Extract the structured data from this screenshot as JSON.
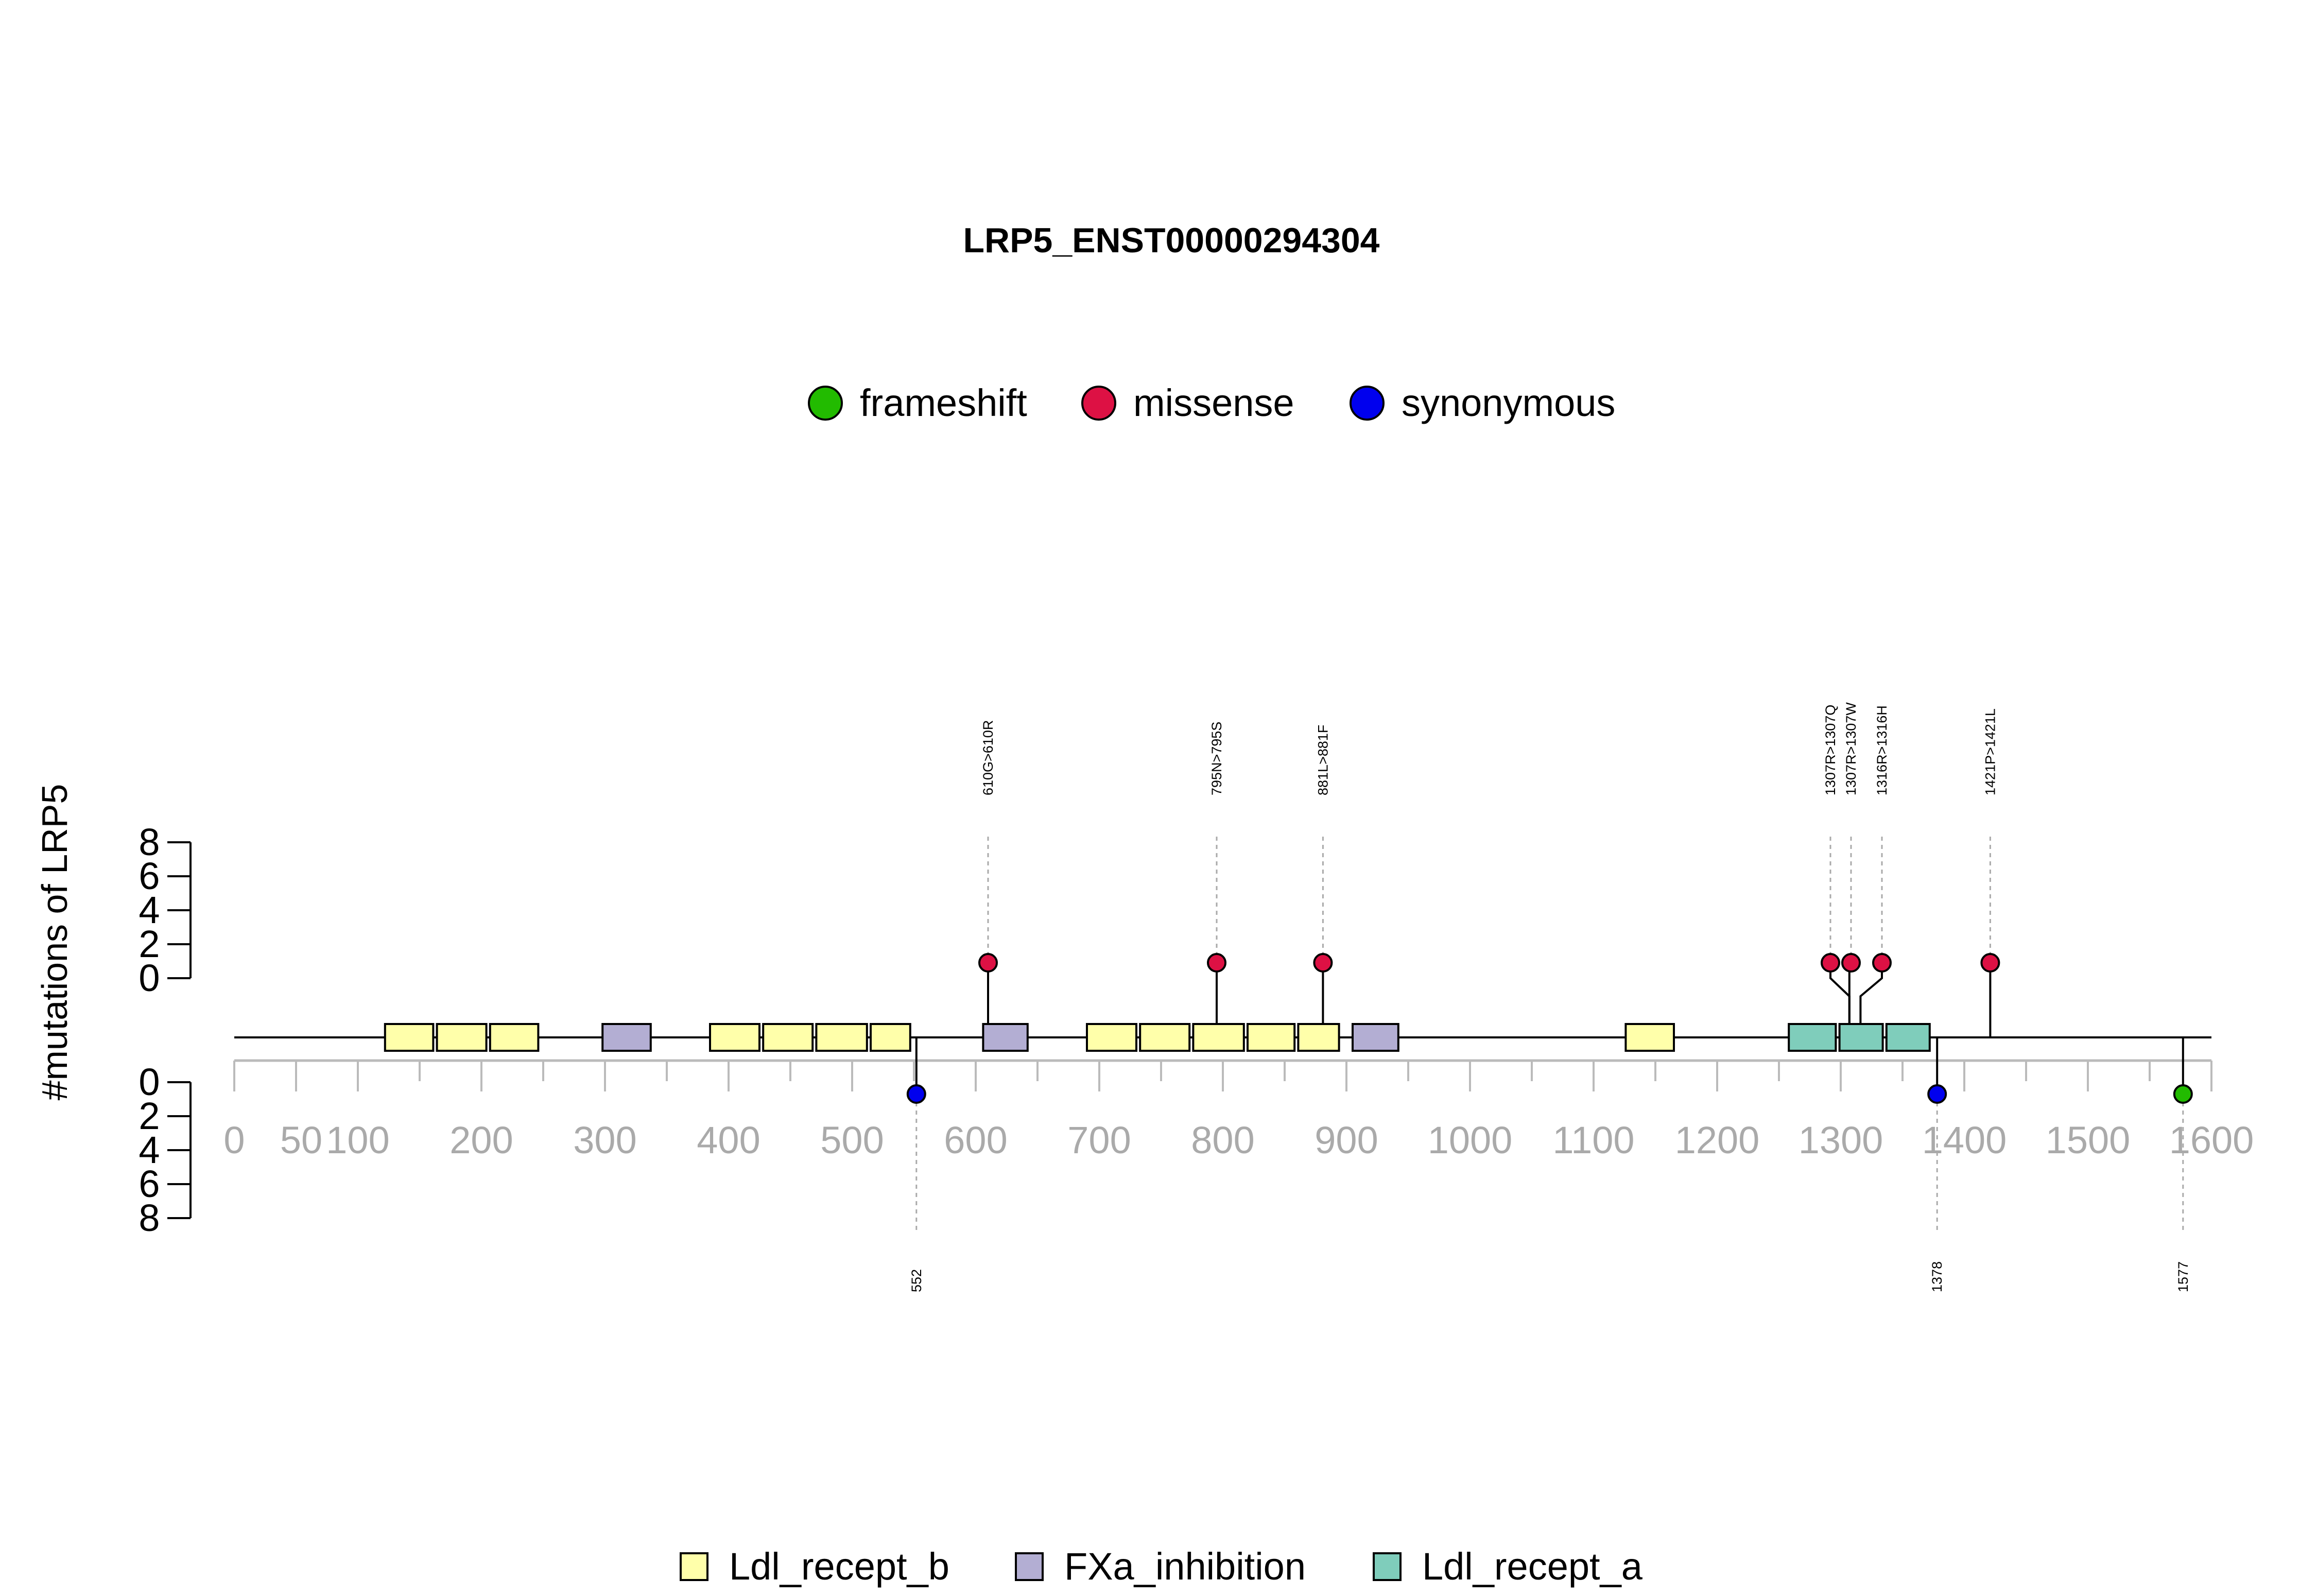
{
  "chart_data": {
    "type": "lollipop",
    "title": "LRP5_ENST00000294304",
    "ylabel": "#mutations of LRP5",
    "xlim": [
      0,
      1600
    ],
    "x_ticks_major": [
      "0",
      "50",
      "100",
      "200",
      "300",
      "400",
      "500",
      "600",
      "700",
      "800",
      "900",
      "1000",
      "1100",
      "1200",
      "1300",
      "1400",
      "1500",
      "1600"
    ],
    "y_ticks_top": [
      "0",
      "2",
      "4",
      "6",
      "8"
    ],
    "y_ticks_bottom": [
      "0",
      "2",
      "4",
      "6",
      "8"
    ],
    "legend_mutation": [
      {
        "label": "frameshift",
        "color": "#22bb00"
      },
      {
        "label": "missense",
        "color": "#dd1144"
      },
      {
        "label": "synonymous",
        "color": "#0000ee"
      }
    ],
    "legend_domain": [
      {
        "label": "Ldl_recept_b",
        "color": "#ffffaa"
      },
      {
        "label": "FXa_inhibition",
        "color": "#b3aed3"
      },
      {
        "label": "Ldl_recept_a",
        "color": "#7fcdbb"
      }
    ],
    "domains": [
      {
        "name": "Ldl_recept_b",
        "start": 122,
        "end": 161
      },
      {
        "name": "Ldl_recept_b",
        "start": 164,
        "end": 204
      },
      {
        "name": "Ldl_recept_b",
        "start": 207,
        "end": 246
      },
      {
        "name": "FXa_inhibition",
        "start": 298,
        "end": 337
      },
      {
        "name": "Ldl_recept_b",
        "start": 385,
        "end": 425
      },
      {
        "name": "Ldl_recept_b",
        "start": 428,
        "end": 468
      },
      {
        "name": "Ldl_recept_b",
        "start": 471,
        "end": 512
      },
      {
        "name": "Ldl_recept_b",
        "start": 515,
        "end": 547
      },
      {
        "name": "FXa_inhibition",
        "start": 606,
        "end": 642
      },
      {
        "name": "Ldl_recept_b",
        "start": 690,
        "end": 730
      },
      {
        "name": "Ldl_recept_b",
        "start": 733,
        "end": 773
      },
      {
        "name": "Ldl_recept_b",
        "start": 776,
        "end": 817
      },
      {
        "name": "Ldl_recept_b",
        "start": 820,
        "end": 858
      },
      {
        "name": "Ldl_recept_b",
        "start": 861,
        "end": 894
      },
      {
        "name": "FXa_inhibition",
        "start": 905,
        "end": 942
      },
      {
        "name": "Ldl_recept_b",
        "start": 1126,
        "end": 1165
      },
      {
        "name": "Ldl_recept_a",
        "start": 1258,
        "end": 1296
      },
      {
        "name": "Ldl_recept_a",
        "start": 1299,
        "end": 1334
      },
      {
        "name": "Ldl_recept_a",
        "start": 1337,
        "end": 1372
      }
    ],
    "mutations_top": [
      {
        "pos": 610,
        "label": "610G>610R",
        "type": "missense",
        "count": 1
      },
      {
        "pos": 795,
        "label": "795N>795S",
        "type": "missense",
        "count": 1
      },
      {
        "pos": 881,
        "label": "881L>881F",
        "type": "missense",
        "count": 1
      },
      {
        "pos": 1307,
        "label": "1307R>1307Q",
        "type": "missense",
        "count": 1
      },
      {
        "pos": 1307,
        "label": "1307R>1307W",
        "type": "missense",
        "count": 1
      },
      {
        "pos": 1316,
        "label": "1316R>1316H",
        "type": "missense",
        "count": 1
      },
      {
        "pos": 1421,
        "label": "1421P>1421L",
        "type": "missense",
        "count": 1
      }
    ],
    "mutations_bottom": [
      {
        "pos": 552,
        "label": "552",
        "type": "synonymous",
        "count": 1
      },
      {
        "pos": 1378,
        "label": "1378",
        "type": "synonymous",
        "count": 1
      },
      {
        "pos": 1577,
        "label": "1577",
        "type": "frameshift",
        "count": 1
      }
    ],
    "type_colors": {
      "missense": "#dd1144",
      "synonymous": "#0000ee",
      "frameshift": "#22bb00"
    },
    "domain_colors": {
      "Ldl_recept_b": "#ffffaa",
      "FXa_inhibition": "#b3aed3",
      "Ldl_recept_a": "#7fcdbb"
    }
  }
}
